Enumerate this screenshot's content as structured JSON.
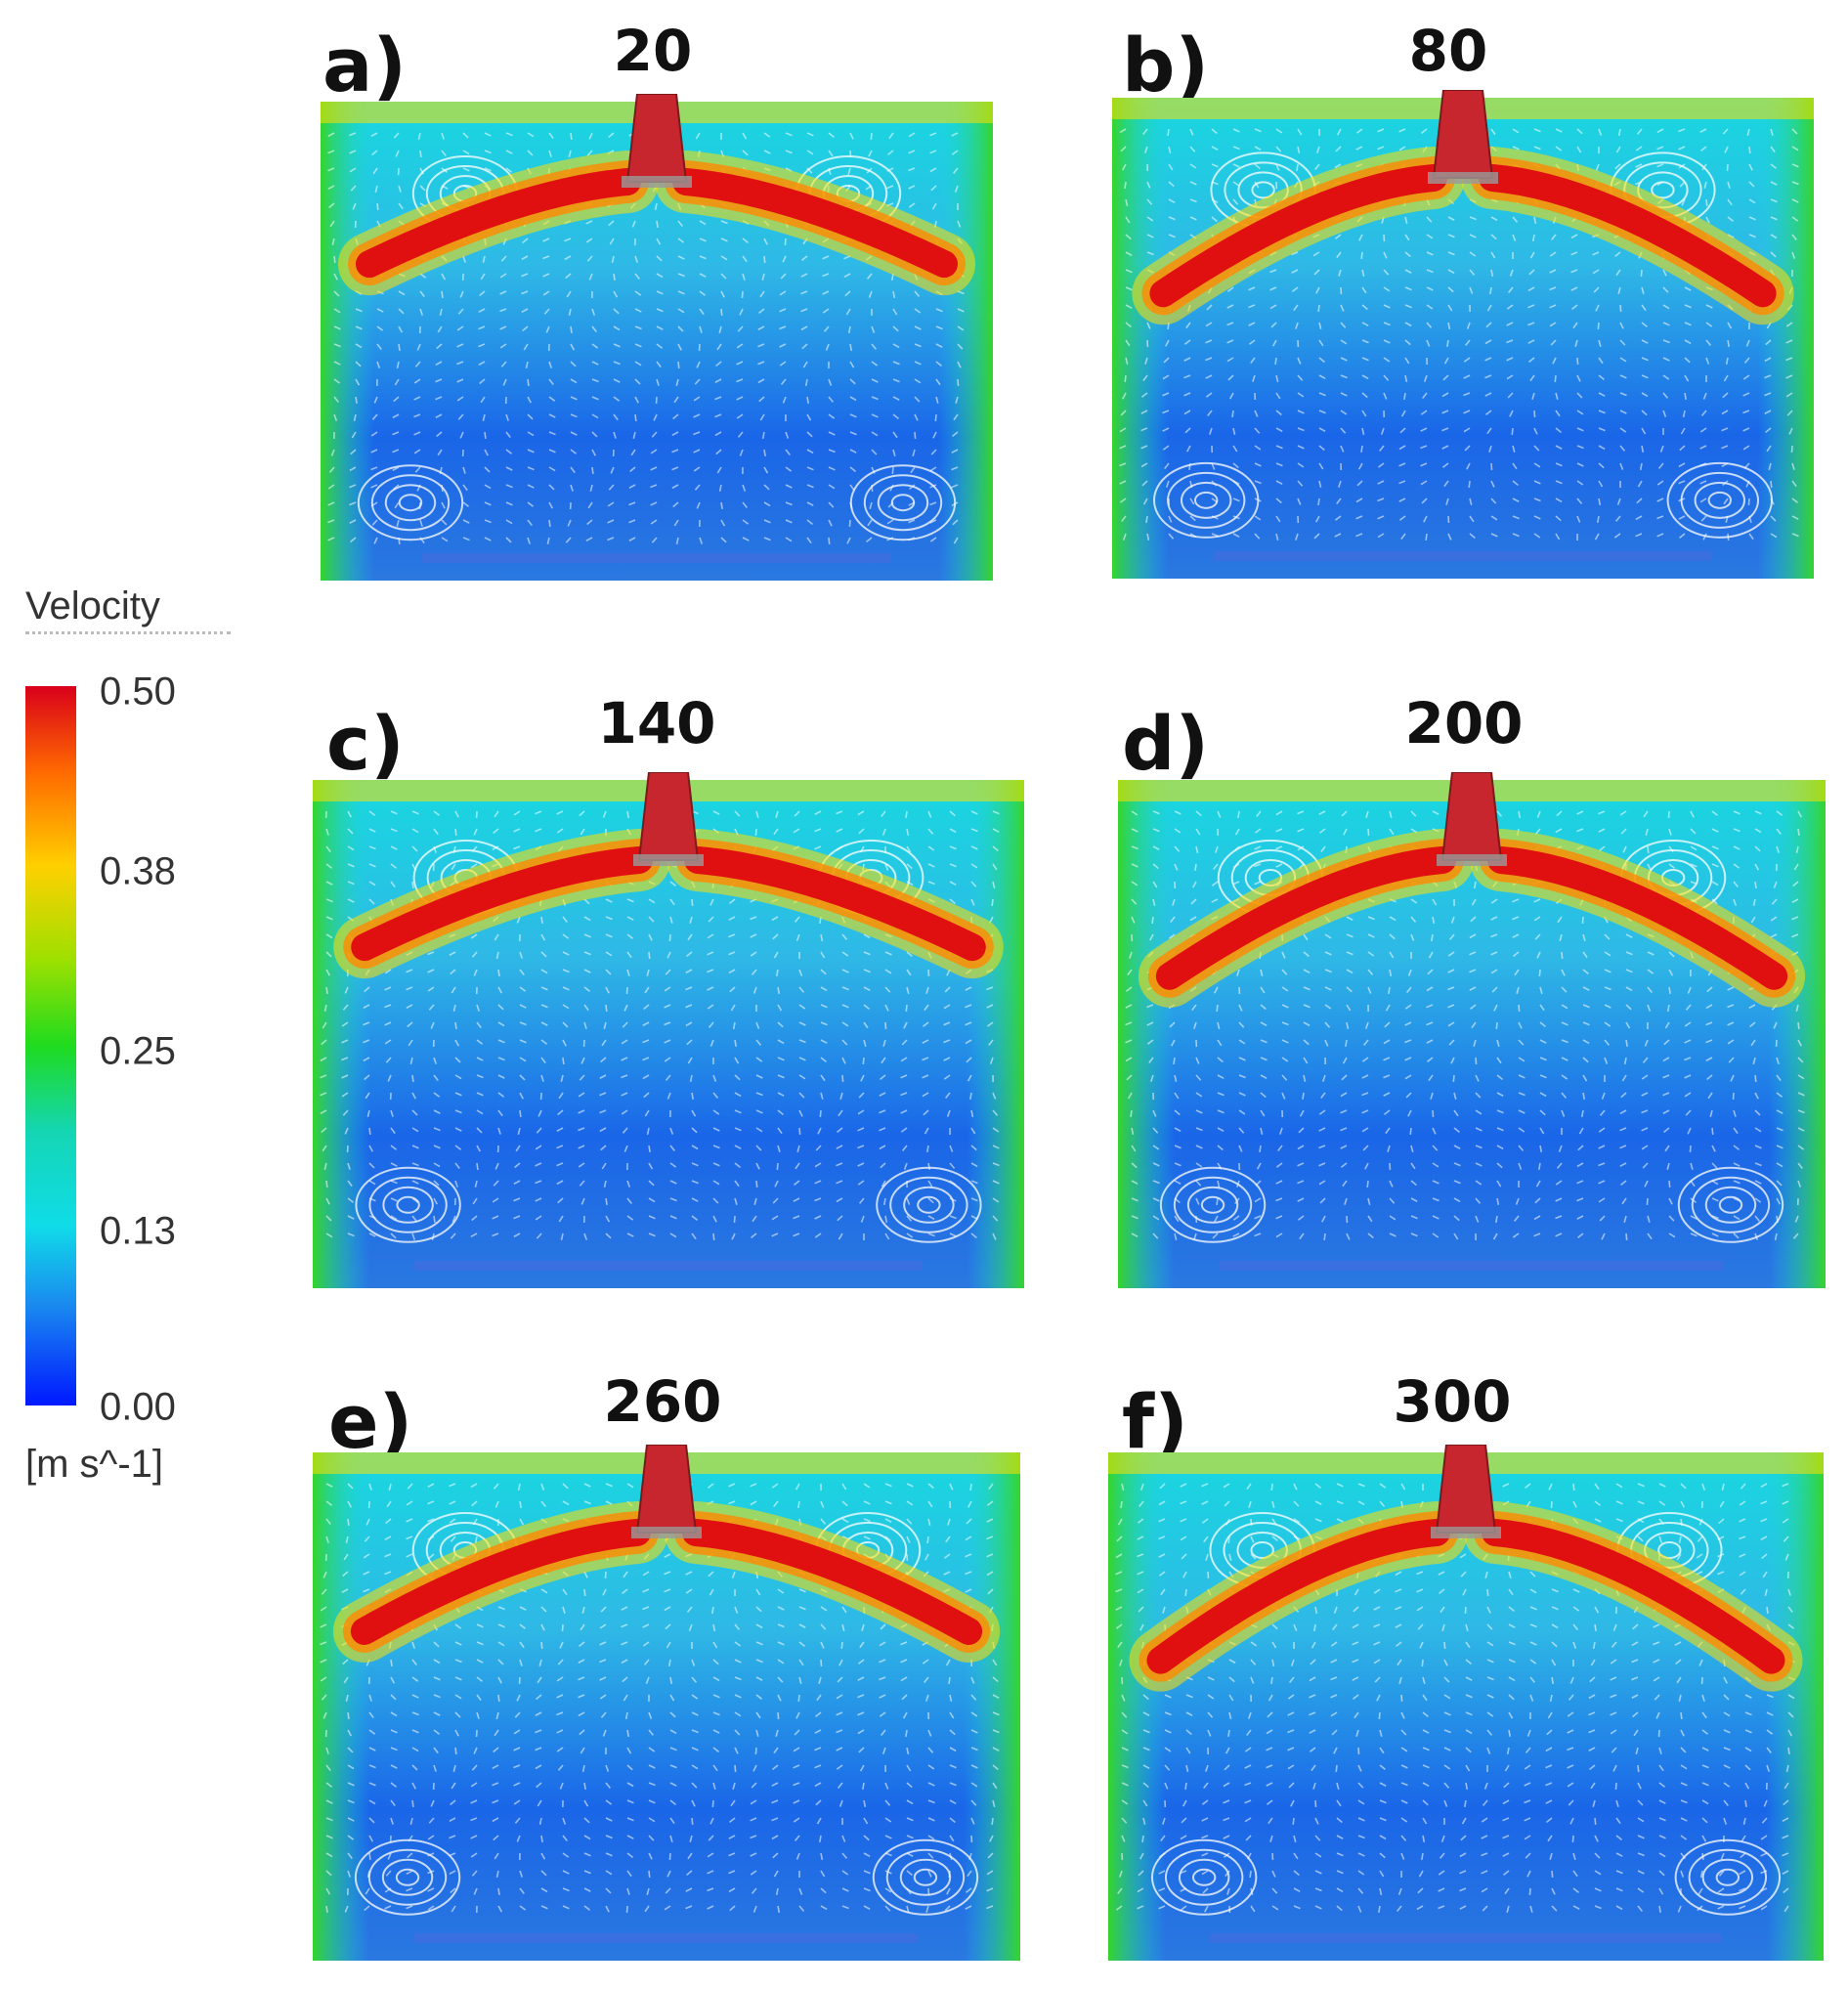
{
  "legend": {
    "title": "Velocity",
    "ticks": [
      "0.50",
      "0.38",
      "0.25",
      "0.13",
      "0.00"
    ],
    "unit": "[m s^-1]"
  },
  "panels": [
    {
      "letter": "a)",
      "time": "20"
    },
    {
      "letter": "b)",
      "time": "80"
    },
    {
      "letter": "c)",
      "time": "140"
    },
    {
      "letter": "d)",
      "time": "200"
    },
    {
      "letter": "e)",
      "time": "260"
    },
    {
      "letter": "f)",
      "time": "300"
    }
  ],
  "colors": {
    "jet_red": "#e01010",
    "jet_orange": "#ff8a00",
    "jet_yellow": "#ffe000",
    "jet_green": "#35d52a",
    "jet_cyan": "#18d8e0",
    "jet_blue": "#1a66e8",
    "jet_darkblue": "#1030c8",
    "nozzle": "#c8262e"
  }
}
